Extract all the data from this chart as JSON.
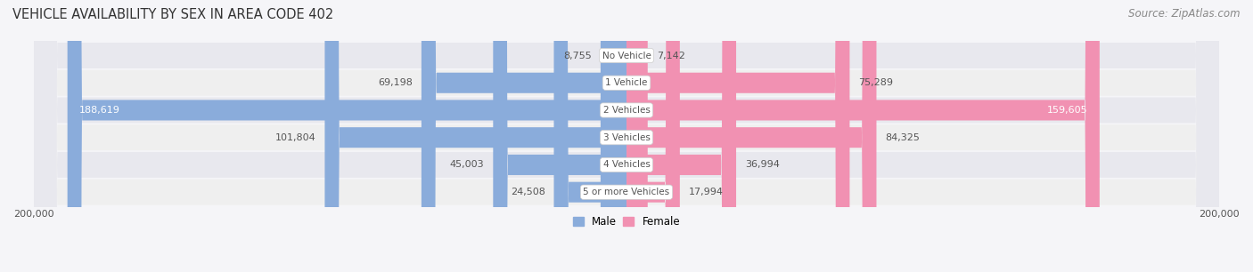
{
  "title": "VEHICLE AVAILABILITY BY SEX IN AREA CODE 402",
  "source": "Source: ZipAtlas.com",
  "categories": [
    "No Vehicle",
    "1 Vehicle",
    "2 Vehicles",
    "3 Vehicles",
    "4 Vehicles",
    "5 or more Vehicles"
  ],
  "male_values": [
    8755,
    69198,
    188619,
    101804,
    45003,
    24508
  ],
  "female_values": [
    7142,
    75289,
    159605,
    84325,
    36994,
    17994
  ],
  "male_color": "#8aacdb",
  "female_color": "#f191b2",
  "row_bg_colors": [
    "#efefef",
    "#e8e8ee"
  ],
  "xlim": 200000,
  "title_fontsize": 10.5,
  "source_fontsize": 8.5,
  "label_fontsize": 8,
  "category_fontsize": 7.5,
  "legend_fontsize": 8.5,
  "axis_label_fontsize": 8
}
